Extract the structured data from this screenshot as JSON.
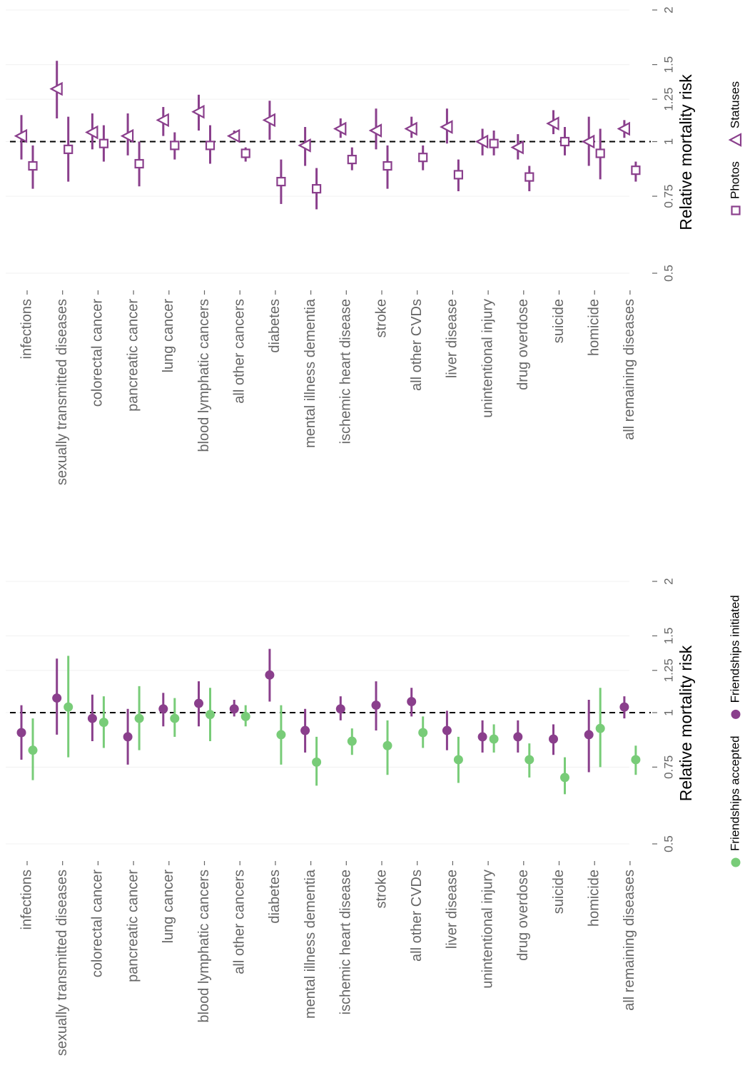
{
  "chart_data": [
    {
      "type": "forest",
      "ylabel": "Relative mortality risk",
      "log_scale": true,
      "reference_line": 1,
      "categories": [
        "infections",
        "sexually transmitted diseases",
        "colorectal cancer",
        "pancreatic cancer",
        "lung cancer",
        "blood lymphatic cancers",
        "all other cancers",
        "diabetes",
        "mental illness dementia",
        "ischemic heart disease",
        "stroke",
        "all other CVDs",
        "liver disease",
        "unintentional injury",
        "drug overdose",
        "suicide",
        "homicide",
        "all remaining diseases"
      ],
      "ylim": [
        0.5,
        2
      ],
      "yticks": [
        0.5,
        0.75,
        1,
        1.25,
        1.5,
        2
      ],
      "series": [
        {
          "name": "Photos",
          "marker": "square",
          "color": "#8a3f8c",
          "values": [
            0.88,
            0.96,
            0.99,
            0.89,
            0.98,
            0.98,
            0.94,
            0.81,
            0.78,
            0.91,
            0.88,
            0.92,
            0.84,
            0.99,
            0.83,
            1.0,
            0.94,
            0.86
          ],
          "lower": [
            0.78,
            0.81,
            0.9,
            0.79,
            0.91,
            0.89,
            0.9,
            0.72,
            0.7,
            0.86,
            0.78,
            0.86,
            0.77,
            0.93,
            0.77,
            0.93,
            0.82,
            0.81
          ],
          "upper": [
            0.98,
            1.14,
            1.09,
            1.0,
            1.05,
            1.09,
            0.97,
            0.91,
            0.87,
            0.97,
            0.98,
            0.98,
            0.91,
            1.06,
            0.88,
            1.08,
            1.07,
            0.9
          ]
        },
        {
          "name": "Statuses",
          "marker": "triangle",
          "color": "#8a3f8c",
          "values": [
            1.03,
            1.32,
            1.05,
            1.03,
            1.12,
            1.17,
            1.03,
            1.12,
            0.98,
            1.07,
            1.06,
            1.07,
            1.08,
            1.0,
            0.97,
            1.1,
            1.0,
            1.07
          ],
          "lower": [
            0.91,
            1.13,
            0.96,
            0.93,
            1.03,
            1.06,
            1.01,
            1.01,
            0.88,
            1.02,
            0.96,
            1.02,
            0.99,
            0.93,
            0.91,
            1.04,
            0.88,
            1.02
          ],
          "upper": [
            1.15,
            1.53,
            1.16,
            1.16,
            1.2,
            1.28,
            1.06,
            1.24,
            1.08,
            1.13,
            1.19,
            1.14,
            1.19,
            1.07,
            1.04,
            1.18,
            1.14,
            1.12
          ]
        }
      ]
    },
    {
      "type": "forest",
      "ylabel": "Relative mortality risk",
      "log_scale": true,
      "reference_line": 1,
      "categories": [
        "infections",
        "sexually transmitted diseases",
        "colorectal cancer",
        "pancreatic cancer",
        "lung cancer",
        "blood lymphatic cancers",
        "all other cancers",
        "diabetes",
        "mental illness dementia",
        "ischemic heart disease",
        "stroke",
        "all other CVDs",
        "liver disease",
        "unintentional injury",
        "drug overdose",
        "suicide",
        "homicide",
        "all remaining diseases"
      ],
      "ylim": [
        0.5,
        2
      ],
      "yticks": [
        0.5,
        0.75,
        1,
        1.25,
        1.5,
        2
      ],
      "series": [
        {
          "name": "Friendships accepted",
          "marker": "circle",
          "color": "#78cc78",
          "values": [
            0.82,
            1.03,
            0.95,
            0.97,
            0.97,
            0.99,
            0.98,
            0.89,
            0.77,
            0.86,
            0.84,
            0.9,
            0.78,
            0.87,
            0.78,
            0.71,
            0.92,
            0.78
          ],
          "lower": [
            0.7,
            0.79,
            0.83,
            0.82,
            0.88,
            0.86,
            0.93,
            0.76,
            0.68,
            0.8,
            0.72,
            0.83,
            0.69,
            0.81,
            0.71,
            0.65,
            0.75,
            0.72
          ],
          "upper": [
            0.97,
            1.35,
            1.09,
            1.15,
            1.08,
            1.14,
            1.04,
            1.04,
            0.88,
            0.92,
            0.96,
            0.98,
            0.88,
            0.94,
            0.85,
            0.79,
            1.14,
            0.84
          ]
        },
        {
          "name": "Friendships initiated",
          "marker": "circle",
          "color": "#8a3f8c",
          "values": [
            0.9,
            1.08,
            0.97,
            0.88,
            1.02,
            1.05,
            1.02,
            1.22,
            0.91,
            1.02,
            1.04,
            1.06,
            0.91,
            0.88,
            0.88,
            0.87,
            0.89,
            1.03
          ],
          "lower": [
            0.78,
            0.89,
            0.86,
            0.76,
            0.93,
            0.93,
            0.98,
            1.06,
            0.81,
            0.96,
            0.91,
            0.98,
            0.82,
            0.81,
            0.81,
            0.8,
            0.73,
            0.97
          ],
          "upper": [
            1.04,
            1.33,
            1.1,
            1.02,
            1.11,
            1.18,
            1.07,
            1.4,
            1.02,
            1.09,
            1.18,
            1.14,
            1.01,
            0.96,
            0.96,
            0.94,
            1.07,
            1.09
          ]
        }
      ]
    }
  ]
}
